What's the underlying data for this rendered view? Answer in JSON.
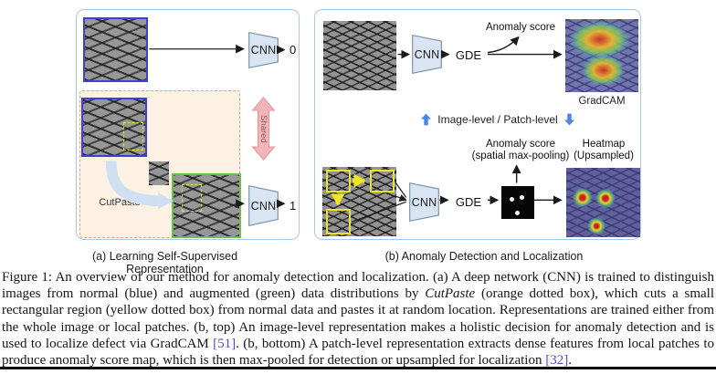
{
  "panel_a": {
    "caption": "(a) Learning Self-Supervised Representation",
    "cnn_top_label": "CNN",
    "cnn_top_output": "0",
    "cnn_bottom_label": "CNN",
    "cnn_bottom_output": "1",
    "cutpaste_label": "CutPaste",
    "shared_label": "Shared"
  },
  "panel_b": {
    "caption": "(b) Anomaly Detection and Localization",
    "top": {
      "cnn_label": "CNN",
      "gde_label": "GDE",
      "anomaly_score_label": "Anomaly score",
      "gradcam_label": "GradCAM"
    },
    "middle_label": "Image-level / Patch-level",
    "bottom": {
      "cnn_label": "CNN",
      "gde_label": "GDE",
      "anomaly_score_line1": "Anomaly score",
      "anomaly_score_line2": "(spatial max-pooling)",
      "heatmap_line1": "Heatmap",
      "heatmap_line2": "(Upsampled)"
    }
  },
  "figure_caption": {
    "segments": [
      {
        "text": "Figure 1: An overview of our method for anomaly detection and localization. (a) A deep network (CNN) is trained to distinguish images from normal (blue) and augmented (green) data distributions by ",
        "style": "normal"
      },
      {
        "text": "CutPaste",
        "style": "italic"
      },
      {
        "text": " (orange dotted box), which cuts a small rectangular region (yellow dotted box) from normal data and pastes it at random location. Representations are trained either from the whole image or local patches. (b, top) An image-level representation makes a holistic decision for anomaly detection and is used to localize defect via GradCAM ",
        "style": "normal"
      },
      {
        "text": "[51]",
        "style": "cite"
      },
      {
        "text": ". (b, bottom) A patch-level representation extracts dense features from local patches to produce anomaly score map, which is then max-pooled for detection or upsampled for localization ",
        "style": "normal"
      },
      {
        "text": "[32]",
        "style": "cite"
      },
      {
        "text": ".",
        "style": "normal"
      }
    ]
  },
  "colors": {
    "panel_border": "#a9c7e7",
    "normal_image_border": "#3d3de0",
    "augmented_image_border": "#6fbf4f",
    "cutpaste_box_border": "#f0a468",
    "cutpaste_box_fill": "#fdf1e3",
    "yellow_patch_box": "#ece42a",
    "shared_arrow_fill": "#f2b4b7",
    "cnn_fill": "#d9e5f3",
    "level_arrow_blue": "#4a86e8",
    "citation_link": "#4d4dd4"
  }
}
